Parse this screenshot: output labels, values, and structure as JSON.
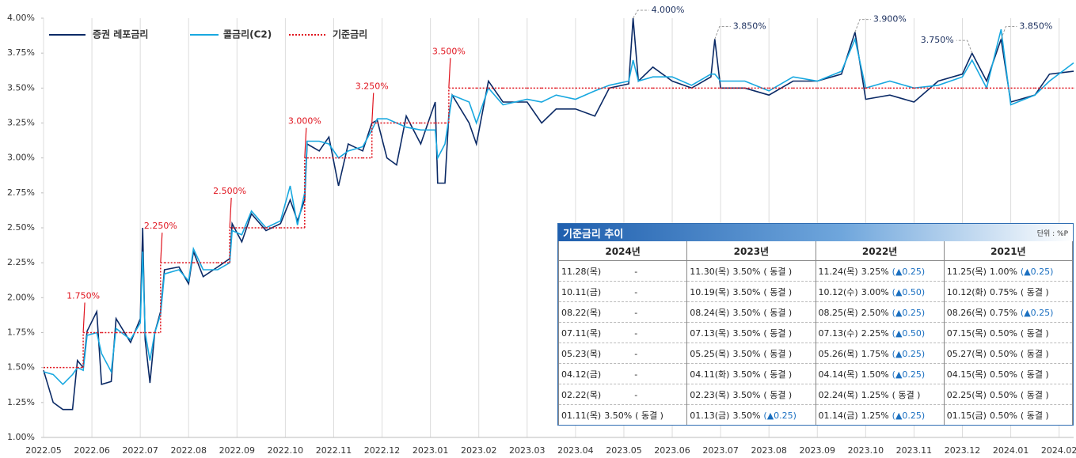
{
  "chart_data": {
    "type": "line",
    "x": [
      0.0,
      0.2,
      0.4,
      0.6,
      0.7,
      0.82,
      0.9,
      1.1,
      1.2,
      1.4,
      1.5,
      1.8,
      2.0,
      2.05,
      2.1,
      2.2,
      2.3,
      2.42,
      2.5,
      2.8,
      3.0,
      3.1,
      3.3,
      3.6,
      3.85,
      3.9,
      4.1,
      4.3,
      4.6,
      4.9,
      5.1,
      5.25,
      5.4,
      5.45,
      5.7,
      5.9,
      6.1,
      6.3,
      6.6,
      6.79,
      6.9,
      7.1,
      7.3,
      7.5,
      7.8,
      8.1,
      8.15,
      8.3,
      8.38,
      8.45,
      8.8,
      8.95,
      9.2,
      9.5,
      10.0,
      10.3,
      10.6,
      11.0,
      11.4,
      11.7,
      12.1,
      12.19,
      12.3,
      12.6,
      13.0,
      13.4,
      13.8,
      13.88,
      14.0,
      14.5,
      15.0,
      15.5,
      16.0,
      16.5,
      16.78,
      17.0,
      17.5,
      18.0,
      18.5,
      19.0,
      19.2,
      19.5,
      19.8,
      20.0,
      20.5,
      20.8,
      21.3
    ],
    "series": [
      {
        "name": "증권 레포금리",
        "color": "#0b2a66",
        "values": [
          1.48,
          1.25,
          1.2,
          1.2,
          1.55,
          1.5,
          1.76,
          1.9,
          1.38,
          1.4,
          1.85,
          1.68,
          1.85,
          2.5,
          1.7,
          1.39,
          1.75,
          1.9,
          2.2,
          2.22,
          2.1,
          2.33,
          2.15,
          2.22,
          2.28,
          2.53,
          2.4,
          2.6,
          2.48,
          2.53,
          2.7,
          2.55,
          2.7,
          3.1,
          3.05,
          3.15,
          2.8,
          3.1,
          3.05,
          3.25,
          3.27,
          3.0,
          2.95,
          3.3,
          3.1,
          3.4,
          2.82,
          2.82,
          3.3,
          3.45,
          3.25,
          3.1,
          3.55,
          3.4,
          3.4,
          3.25,
          3.35,
          3.35,
          3.3,
          3.5,
          3.53,
          4.0,
          3.55,
          3.65,
          3.55,
          3.5,
          3.58,
          3.85,
          3.5,
          3.5,
          3.45,
          3.55,
          3.55,
          3.6,
          3.9,
          3.42,
          3.45,
          3.4,
          3.55,
          3.6,
          3.75,
          3.55,
          3.85,
          3.4,
          3.45,
          3.6,
          3.62
        ]
      },
      {
        "name": "콜금리(C2)",
        "color": "#18a8e0",
        "values": [
          1.47,
          1.45,
          1.38,
          1.45,
          1.5,
          1.48,
          1.73,
          1.75,
          1.6,
          1.47,
          1.78,
          1.7,
          1.82,
          2.33,
          1.75,
          1.55,
          1.75,
          1.88,
          2.17,
          2.2,
          2.12,
          2.35,
          2.2,
          2.2,
          2.25,
          2.48,
          2.45,
          2.62,
          2.5,
          2.55,
          2.8,
          2.52,
          2.75,
          3.12,
          3.12,
          3.1,
          3.0,
          3.05,
          3.08,
          3.2,
          3.28,
          3.28,
          3.25,
          3.22,
          3.2,
          3.2,
          3.0,
          3.1,
          3.28,
          3.45,
          3.4,
          3.25,
          3.5,
          3.38,
          3.42,
          3.4,
          3.45,
          3.42,
          3.48,
          3.52,
          3.55,
          3.7,
          3.55,
          3.58,
          3.58,
          3.52,
          3.6,
          3.6,
          3.55,
          3.55,
          3.48,
          3.58,
          3.55,
          3.62,
          3.85,
          3.5,
          3.55,
          3.5,
          3.52,
          3.58,
          3.7,
          3.5,
          3.92,
          3.38,
          3.45,
          3.55,
          3.68
        ]
      },
      {
        "name": "기준금리",
        "color": "#e0141e",
        "step": true,
        "dash": true,
        "values": [
          1.5,
          1.5,
          1.5,
          1.5,
          1.5,
          1.75,
          1.75,
          1.75,
          1.75,
          1.75,
          1.75,
          1.75,
          1.75,
          1.75,
          1.75,
          1.75,
          1.75,
          2.25,
          2.25,
          2.25,
          2.25,
          2.25,
          2.25,
          2.25,
          2.5,
          2.5,
          2.5,
          2.5,
          2.5,
          2.5,
          2.5,
          2.5,
          3.0,
          3.0,
          3.0,
          3.0,
          3.0,
          3.0,
          3.0,
          3.25,
          3.25,
          3.25,
          3.25,
          3.25,
          3.25,
          3.25,
          3.25,
          3.25,
          3.5,
          3.5,
          3.5,
          3.5,
          3.5,
          3.5,
          3.5,
          3.5,
          3.5,
          3.5,
          3.5,
          3.5,
          3.5,
          3.5,
          3.5,
          3.5,
          3.5,
          3.5,
          3.5,
          3.5,
          3.5,
          3.5,
          3.5,
          3.5,
          3.5,
          3.5,
          3.5,
          3.5,
          3.5,
          3.5,
          3.5,
          3.5,
          3.5,
          3.5,
          3.5,
          3.5,
          3.5,
          3.5,
          3.5
        ]
      }
    ],
    "xlim": [
      0,
      21.3
    ],
    "xticks": [
      {
        "value": 0,
        "label": "2022.05"
      },
      {
        "value": 1,
        "label": "2022.06"
      },
      {
        "value": 2,
        "label": "2022.07"
      },
      {
        "value": 3,
        "label": "2022.08"
      },
      {
        "value": 4,
        "label": "2022.09"
      },
      {
        "value": 5,
        "label": "2022.10"
      },
      {
        "value": 6,
        "label": "2022.11"
      },
      {
        "value": 7,
        "label": "2022.12"
      },
      {
        "value": 8,
        "label": "2023.01"
      },
      {
        "value": 9,
        "label": "2023.02"
      },
      {
        "value": 10,
        "label": "2023.03"
      },
      {
        "value": 11,
        "label": "2023.04"
      },
      {
        "value": 12,
        "label": "2023.05"
      },
      {
        "value": 13,
        "label": "2023.06"
      },
      {
        "value": 14,
        "label": "2023.07"
      },
      {
        "value": 15,
        "label": "2023.08"
      },
      {
        "value": 16,
        "label": "2023.09"
      },
      {
        "value": 17,
        "label": "2023.10"
      },
      {
        "value": 18,
        "label": "2023.11"
      },
      {
        "value": 19,
        "label": "2023.12"
      },
      {
        "value": 20,
        "label": "2024.01"
      },
      {
        "value": 21,
        "label": "2024.02"
      }
    ],
    "ylim": [
      1,
      4
    ],
    "yticks": [
      {
        "value": 1,
        "label": "1.00%"
      },
      {
        "value": 1.25,
        "label": "1.25%"
      },
      {
        "value": 1.5,
        "label": "1.50%"
      },
      {
        "value": 1.75,
        "label": "1.75%"
      },
      {
        "value": 2,
        "label": "2.00%"
      },
      {
        "value": 2.25,
        "label": "2.25%"
      },
      {
        "value": 2.5,
        "label": "2.50%"
      },
      {
        "value": 2.75,
        "label": "2.75%"
      },
      {
        "value": 3,
        "label": "3.00%"
      },
      {
        "value": 3.25,
        "label": "3.25%"
      },
      {
        "value": 3.5,
        "label": "3.50%"
      },
      {
        "value": 3.75,
        "label": "3.75%"
      },
      {
        "value": 4,
        "label": "4.00%"
      }
    ],
    "grid": "x",
    "legend": "top-left",
    "annotations": [
      {
        "text": "1.750%",
        "x": 0.82,
        "y": 1.75,
        "color": "#e0141e"
      },
      {
        "text": "2.250%",
        "x": 2.42,
        "y": 2.25,
        "color": "#e0141e"
      },
      {
        "text": "2.500%",
        "x": 3.85,
        "y": 2.5,
        "color": "#e0141e"
      },
      {
        "text": "3.000%",
        "x": 5.4,
        "y": 3.0,
        "color": "#e0141e"
      },
      {
        "text": "3.250%",
        "x": 6.79,
        "y": 3.25,
        "color": "#e0141e"
      },
      {
        "text": "3.500%",
        "x": 8.38,
        "y": 3.5,
        "color": "#e0141e"
      },
      {
        "text": "4.000%",
        "x": 12.19,
        "y": 4.0,
        "color": "#1b2f5e"
      },
      {
        "text": "3.850%",
        "x": 13.88,
        "y": 3.85,
        "color": "#1b2f5e"
      },
      {
        "text": "3.900%",
        "x": 16.78,
        "y": 3.9,
        "color": "#1b2f5e"
      },
      {
        "text": "3.750%",
        "x": 19.2,
        "y": 3.75,
        "color": "#1b2f5e"
      },
      {
        "text": "3.850%",
        "x": 19.8,
        "y": 3.85,
        "color": "#1b2f5e"
      }
    ]
  },
  "table": {
    "title": "기준금리 추이",
    "unit": "단위 : %P",
    "headers": [
      "2024년",
      "2023년",
      "2022년",
      "2021년"
    ],
    "rows": [
      [
        [
          "11.28(목)",
          "-"
        ],
        [
          "11.30(목)",
          "3.50%",
          "( 동결 )"
        ],
        [
          "11.24(목)",
          "3.25%",
          "(▲0.25)"
        ],
        [
          "11.25(목)",
          "1.00%",
          "(▲0.25)"
        ]
      ],
      [
        [
          "10.11(금)",
          "-"
        ],
        [
          "10.19(목)",
          "3.50%",
          "( 동결 )"
        ],
        [
          "10.12(수)",
          "3.00%",
          "(▲0.50)"
        ],
        [
          "10.12(화)",
          "0.75%",
          "( 동결 )"
        ]
      ],
      [
        [
          "08.22(목)",
          "-"
        ],
        [
          "08.24(목)",
          "3.50%",
          "( 동결 )"
        ],
        [
          "08.25(목)",
          "2.50%",
          "(▲0.25)"
        ],
        [
          "08.26(목)",
          "0.75%",
          "(▲0.25)"
        ]
      ],
      [
        [
          "07.11(목)",
          "-"
        ],
        [
          "07.13(목)",
          "3.50%",
          "( 동결 )"
        ],
        [
          "07.13(수)",
          "2.25%",
          "(▲0.50)"
        ],
        [
          "07.15(목)",
          "0.50%",
          "( 동결 )"
        ]
      ],
      [
        [
          "05.23(목)",
          "-"
        ],
        [
          "05.25(목)",
          "3.50%",
          "( 동결 )"
        ],
        [
          "05.26(목)",
          "1.75%",
          "(▲0.25)"
        ],
        [
          "05.27(목)",
          "0.50%",
          "( 동결 )"
        ]
      ],
      [
        [
          "04.12(금)",
          "-"
        ],
        [
          "04.11(화)",
          "3.50%",
          "( 동결 )"
        ],
        [
          "04.14(목)",
          "1.50%",
          "(▲0.25)"
        ],
        [
          "04.15(목)",
          "0.50%",
          "( 동결 )"
        ]
      ],
      [
        [
          "02.22(목)",
          "-"
        ],
        [
          "02.23(목)",
          "3.50%",
          "( 동결 )"
        ],
        [
          "02.24(목)",
          "1.25%",
          "( 동결 )"
        ],
        [
          "02.25(목)",
          "0.50%",
          "( 동결 )"
        ]
      ],
      [
        [
          "01.11(목)",
          "3.50%",
          "( 동결 )"
        ],
        [
          "01.13(금)",
          "3.50%",
          "(▲0.25)"
        ],
        [
          "01.14(금)",
          "1.25%",
          "(▲0.25)"
        ],
        [
          "01.15(금)",
          "0.50%",
          "( 동결 )"
        ]
      ]
    ]
  }
}
